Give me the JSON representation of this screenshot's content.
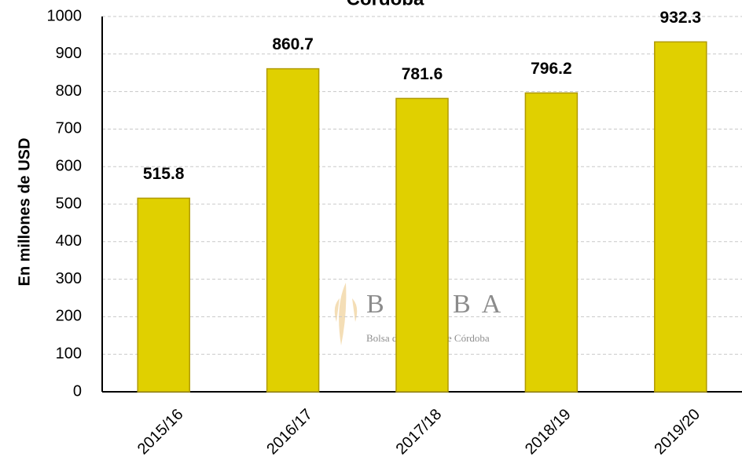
{
  "chart_data": {
    "type": "bar",
    "title": "Córdoba",
    "y_label": "En millones de USD",
    "categories": [
      "2015/16",
      "2016/17",
      "2017/18",
      "2018/19",
      "2019/20"
    ],
    "values": [
      515.8,
      860.7,
      781.6,
      796.2,
      932.3
    ],
    "color": "#e0d000",
    "ylim": [
      0,
      1000
    ],
    "yticks": [
      0,
      100,
      200,
      300,
      400,
      500,
      600,
      700,
      800,
      900,
      1000
    ],
    "grid": true
  },
  "watermark": {
    "logo": "BCCBA",
    "text": "Bolsa de Cereales de Córdoba"
  }
}
